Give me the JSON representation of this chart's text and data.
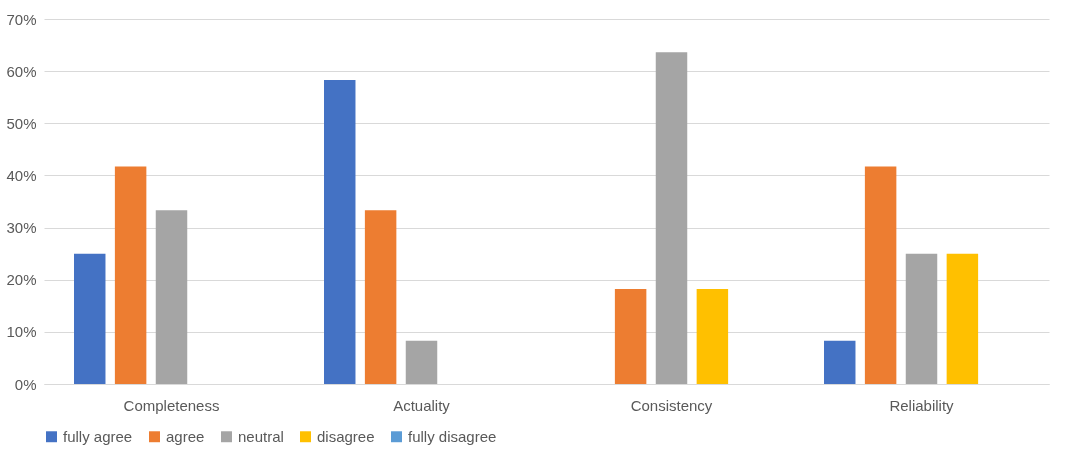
{
  "chart_data": {
    "type": "bar",
    "categories": [
      "Completeness",
      "Actuality",
      "Consistency",
      "Reliability"
    ],
    "series": [
      {
        "name": "fully agree",
        "color": "#4472c4",
        "values": [
          25,
          58.3,
          0,
          8.3
        ]
      },
      {
        "name": "agree",
        "color": "#ed7d31",
        "values": [
          41.7,
          33.3,
          18.2,
          41.7
        ]
      },
      {
        "name": "neutral",
        "color": "#a5a5a5",
        "values": [
          33.3,
          8.3,
          63.6,
          25
        ]
      },
      {
        "name": "disagree",
        "color": "#ffc000",
        "values": [
          0,
          0,
          18.2,
          25
        ]
      },
      {
        "name": "fully disagree",
        "color": "#5b9bd5",
        "values": [
          0,
          0,
          0,
          0
        ]
      }
    ],
    "ylim": [
      0,
      70
    ],
    "yticks": [
      {
        "value": 0,
        "label": "0%"
      },
      {
        "value": 10,
        "label": "10%"
      },
      {
        "value": 20,
        "label": "20%"
      },
      {
        "value": 30,
        "label": "30%"
      },
      {
        "value": 40,
        "label": "40%"
      },
      {
        "value": 50,
        "label": "50%"
      },
      {
        "value": 60,
        "label": "60%"
      },
      {
        "value": 70,
        "label": "70%"
      }
    ],
    "grid": "y",
    "legend": "bottom"
  }
}
